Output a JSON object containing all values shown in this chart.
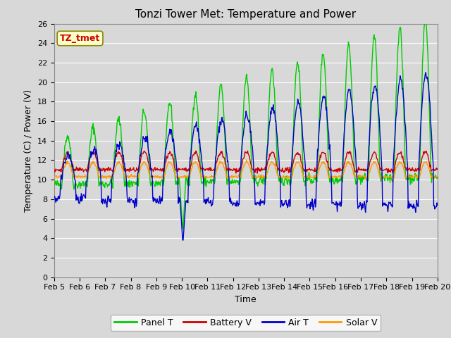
{
  "title": "Tonzi Tower Met: Temperature and Power",
  "xlabel": "Time",
  "ylabel": "Temperature (C) / Power (V)",
  "ylim": [
    0,
    26
  ],
  "yticks": [
    0,
    2,
    4,
    6,
    8,
    10,
    12,
    14,
    16,
    18,
    20,
    22,
    24,
    26
  ],
  "xtick_labels": [
    "Feb 5",
    "Feb 6",
    "Feb 7",
    "Feb 8",
    "Feb 9",
    "Feb 10",
    "Feb 11",
    "Feb 12",
    "Feb 13",
    "Feb 14",
    "Feb 15",
    "Feb 16",
    "Feb 17",
    "Feb 18",
    "Feb 19",
    "Feb 20"
  ],
  "annotation_text": "TZ_tmet",
  "annotation_color": "#cc0000",
  "annotation_bg": "#ffffcc",
  "plot_bg": "#d8d8d8",
  "fig_bg": "#d8d8d8",
  "grid_color": "#ffffff",
  "line_colors": [
    "#00cc00",
    "#cc0000",
    "#0000cc",
    "#ff9900"
  ],
  "line_labels": [
    "Panel T",
    "Battery V",
    "Air T",
    "Solar V"
  ],
  "line_width": 1.0,
  "title_fontsize": 11,
  "label_fontsize": 9,
  "tick_fontsize": 8
}
